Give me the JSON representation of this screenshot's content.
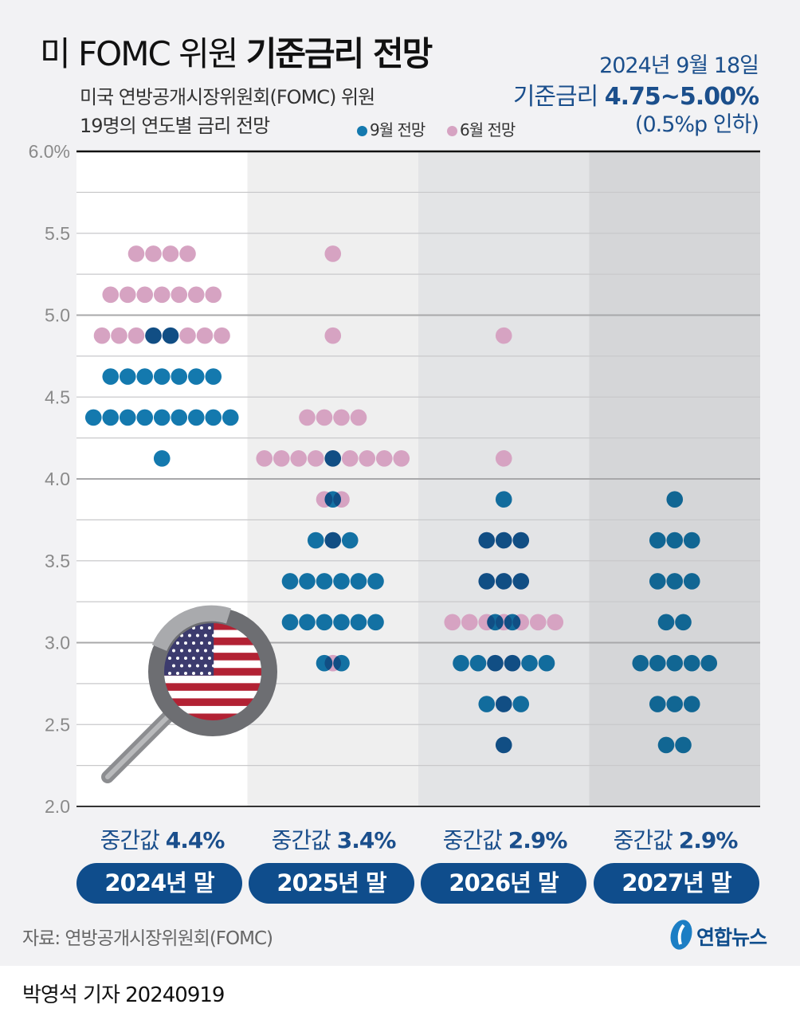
{
  "header": {
    "title_prefix": "미 FOMC 위원",
    "title_bold": "기준금리 전망",
    "subtitle_line1": "미국 연방공개시장위원회(FOMC) 위원",
    "subtitle_line2": "19명의 연도별 금리 전망",
    "date": "2024년 9월 18일",
    "rate_label": "기준금리",
    "rate_value": "4.75~5.00%",
    "rate_change": "(0.5%p 인하)"
  },
  "colors": {
    "september": "#1479ae",
    "june": "#d6a3c2",
    "overlap": "#2f5a8f",
    "pill": "#0f4d8c",
    "text_blue": "#1b4f8c"
  },
  "chart_data": {
    "type": "scatter",
    "title": "미 FOMC 위원 기준금리 전망",
    "ylim": [
      2.0,
      6.0
    ],
    "yticks": [
      "6.0%",
      "5.5",
      "5.0",
      "4.5",
      "4.0",
      "3.5",
      "3.0",
      "2.5",
      "2.0"
    ],
    "legend": [
      {
        "name": "9월 전망",
        "color": "#1479ae"
      },
      {
        "name": "6월 전망",
        "color": "#d6a3c2"
      }
    ],
    "legend_position": "top",
    "categories": [
      "2024년 말",
      "2025년 말",
      "2026년 말",
      "2027년 말"
    ],
    "medians": [
      {
        "label": "중간값",
        "value": "4.4%"
      },
      {
        "label": "중간값",
        "value": "3.4%"
      },
      {
        "label": "중간값",
        "value": "2.9%"
      },
      {
        "label": "중간값",
        "value": "2.9%"
      }
    ],
    "series": [
      {
        "name": "6월 전망",
        "dots": [
          [
            [
              5.375,
              4
            ],
            [
              5.125,
              7
            ],
            [
              4.875,
              8
            ]
          ],
          [
            [
              5.375,
              1
            ],
            [
              4.875,
              1
            ],
            [
              4.375,
              4
            ],
            [
              4.125,
              9
            ],
            [
              3.875,
              2
            ],
            [
              3.625,
              1
            ],
            [
              2.875,
              1
            ]
          ],
          [
            [
              4.875,
              1
            ],
            [
              4.125,
              1
            ],
            [
              3.625,
              3
            ],
            [
              3.375,
              3
            ],
            [
              3.125,
              7
            ],
            [
              2.875,
              2
            ],
            [
              2.625,
              1
            ],
            [
              2.375,
              1
            ]
          ],
          []
        ]
      },
      {
        "name": "9월 전망",
        "dots": [
          [
            [
              4.875,
              2
            ],
            [
              4.625,
              7
            ],
            [
              4.375,
              9
            ],
            [
              4.125,
              1
            ]
          ],
          [
            [
              4.125,
              1
            ],
            [
              3.875,
              1
            ],
            [
              3.625,
              3
            ],
            [
              3.375,
              6
            ],
            [
              3.125,
              6
            ],
            [
              2.875,
              2
            ]
          ],
          [
            [
              3.875,
              1
            ],
            [
              3.625,
              3
            ],
            [
              3.375,
              3
            ],
            [
              3.125,
              2
            ],
            [
              2.875,
              6
            ],
            [
              2.625,
              3
            ],
            [
              2.375,
              1
            ]
          ],
          [
            [
              3.875,
              1
            ],
            [
              3.625,
              3
            ],
            [
              3.375,
              3
            ],
            [
              3.125,
              2
            ],
            [
              2.875,
              5
            ],
            [
              2.625,
              3
            ],
            [
              2.375,
              2
            ]
          ]
        ]
      }
    ]
  },
  "footer": {
    "source": "자료: 연방공개시장위원회(FOMC)",
    "logo": "연합뉴스",
    "byline": "박영석 기자 20240919"
  }
}
